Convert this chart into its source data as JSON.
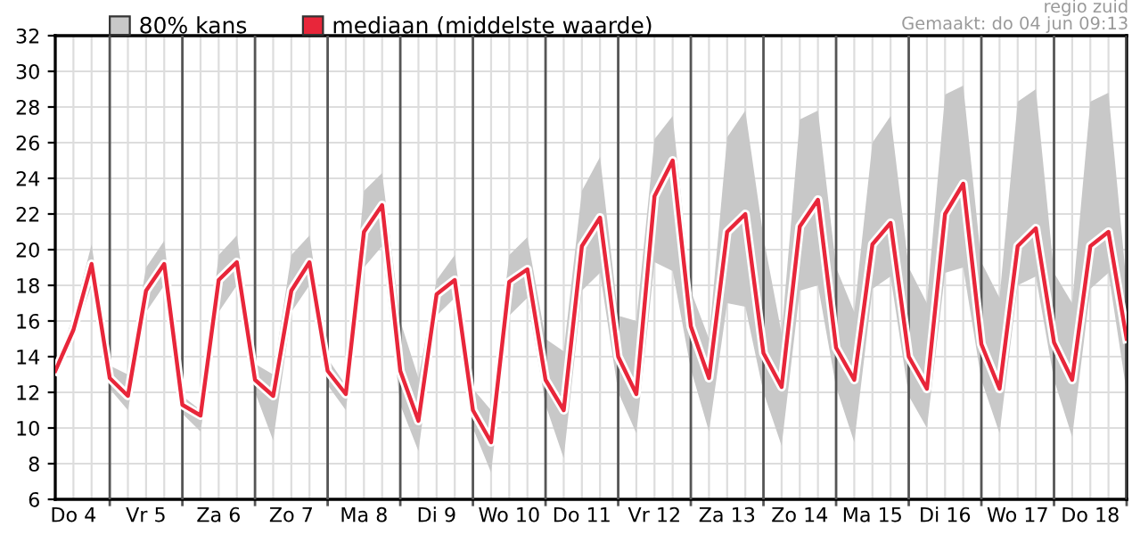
{
  "chart_data": {
    "type": "line",
    "annotations": [
      "80% kans",
      "regio zuid",
      "Gemaakt: do 04 jun 09:13"
    ],
    "categories": [
      null,
      "Do 4",
      null,
      null,
      null,
      "Vr 5",
      null,
      null,
      null,
      "Za 6",
      null,
      null,
      null,
      "Zo 7",
      null,
      null,
      null,
      "Ma 8",
      null,
      null,
      null,
      "Di 9",
      null,
      null,
      null,
      "Wo 10",
      null,
      null,
      null,
      "Do 11",
      null,
      null,
      null,
      "Vr 12",
      null,
      null,
      null,
      "Za 13",
      null,
      null,
      null,
      "Zo 14",
      null,
      null,
      null,
      "Ma 15",
      null,
      null,
      null,
      "Di 16",
      null,
      null,
      null,
      "Wo 17",
      null,
      null,
      null,
      "Do 18",
      null,
      null
    ],
    "series": [
      {
        "name": "mediaan (middelste waarde)",
        "color": "#e8263a",
        "values": [
          13.2,
          15.5,
          19.2,
          12.8,
          11.8,
          17.7,
          19.2,
          11.3,
          10.7,
          18.3,
          19.3,
          12.7,
          11.8,
          17.7,
          19.3,
          13.2,
          11.9,
          21.0,
          22.5,
          13.2,
          10.4,
          17.5,
          18.3,
          11.0,
          9.2,
          18.2,
          18.9,
          12.7,
          11.0,
          20.2,
          21.8,
          14.0,
          11.9,
          23.0,
          25.0,
          15.7,
          12.8,
          21.0,
          22.0,
          14.2,
          12.3,
          21.3,
          22.8,
          14.5,
          12.7,
          20.3,
          21.5,
          14.0,
          12.2,
          22.0,
          23.7,
          14.7,
          12.2,
          20.2,
          21.2,
          14.8,
          12.7,
          20.2,
          21.0,
          15.0
        ],
        "lower": [
          13.0,
          15.0,
          18.0,
          12.2,
          11.0,
          16.5,
          18.0,
          10.8,
          9.8,
          16.5,
          18.0,
          12.0,
          9.3,
          16.5,
          18.0,
          12.4,
          11.0,
          19.0,
          20.2,
          11.3,
          8.7,
          16.3,
          17.3,
          10.0,
          7.5,
          16.3,
          17.3,
          11.3,
          8.3,
          17.7,
          18.7,
          12.0,
          9.7,
          19.3,
          18.8,
          13.3,
          9.8,
          17.0,
          16.8,
          12.0,
          9.0,
          17.7,
          18.0,
          12.3,
          9.2,
          17.8,
          18.5,
          11.8,
          10.0,
          18.7,
          19.0,
          12.7,
          9.7,
          18.0,
          18.5,
          12.7,
          9.5,
          17.8,
          18.7,
          12.0
        ],
        "upper": [
          13.4,
          16.3,
          20.3,
          13.5,
          13.0,
          19.0,
          20.5,
          11.8,
          11.0,
          19.7,
          20.8,
          13.6,
          13.0,
          19.7,
          20.8,
          13.9,
          12.4,
          23.3,
          24.3,
          16.0,
          12.8,
          18.3,
          19.7,
          12.2,
          11.0,
          19.7,
          20.7,
          15.0,
          14.3,
          23.3,
          25.2,
          16.3,
          16.0,
          26.2,
          27.5,
          17.7,
          15.0,
          26.3,
          27.8,
          20.7,
          15.3,
          27.3,
          27.8,
          19.0,
          16.5,
          26.0,
          27.5,
          19.0,
          17.0,
          28.7,
          29.2,
          19.3,
          17.3,
          28.3,
          29.0,
          18.7,
          17.0,
          28.3,
          28.8,
          18.0
        ]
      }
    ],
    "ylim": [
      6,
      32
    ],
    "yticks": [
      6,
      8,
      10,
      12,
      14,
      16,
      18,
      20,
      22,
      24,
      26,
      28,
      30,
      32
    ],
    "grid": true,
    "legend": "top left"
  }
}
